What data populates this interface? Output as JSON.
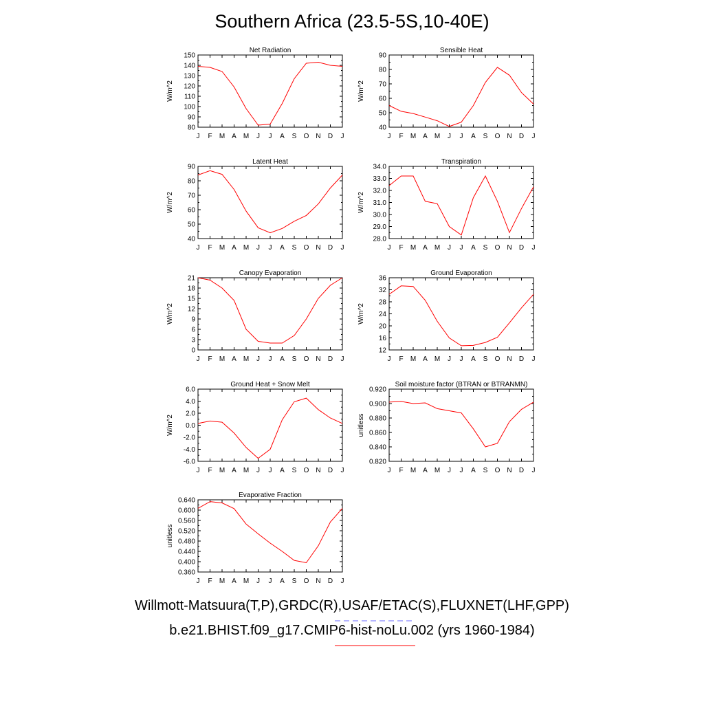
{
  "title": "Southern Africa (23.5-5S,10-40E)",
  "legend": [
    {
      "label": "Willmott-Matsuura(T,P),GRDC(R),USAF/ETAC(S),FLUXNET(LHF,GPP)",
      "color": "#6a6aff",
      "style": "dashed"
    },
    {
      "label": "b.e21.BHIST.f09_g17.CMIP6-hist-noLu.002 (yrs 1960-1984)",
      "color": "#ff0000",
      "style": "solid"
    }
  ],
  "chart_data": [
    {
      "type": "line",
      "title": "Net Radiation",
      "ylabel": "W/m^2",
      "categories": [
        "J",
        "F",
        "M",
        "A",
        "M",
        "J",
        "J",
        "A",
        "S",
        "O",
        "N",
        "D",
        "J"
      ],
      "ylim": [
        80,
        150
      ],
      "yticks": [
        "80",
        "90",
        "100",
        "110",
        "120",
        "130",
        "140",
        "150"
      ],
      "series": [
        {
          "color": "#ff0000",
          "values": [
            139,
            138,
            134,
            119,
            98,
            82,
            83,
            103,
            127,
            142,
            143,
            140,
            139
          ]
        }
      ]
    },
    {
      "type": "line",
      "title": "Sensible Heat",
      "ylabel": "W/m^2",
      "categories": [
        "J",
        "F",
        "M",
        "A",
        "M",
        "J",
        "J",
        "A",
        "S",
        "O",
        "N",
        "D",
        "J"
      ],
      "ylim": [
        40,
        90
      ],
      "yticks": [
        "40",
        "50",
        "60",
        "70",
        "80",
        "90"
      ],
      "series": [
        {
          "color": "#ff0000",
          "values": [
            55,
            51,
            49.5,
            47,
            44.5,
            40.5,
            43.5,
            55,
            71,
            81.5,
            76,
            64,
            56
          ]
        }
      ]
    },
    {
      "type": "line",
      "title": "Latent Heat",
      "ylabel": "W/m^2",
      "categories": [
        "J",
        "F",
        "M",
        "A",
        "M",
        "J",
        "J",
        "A",
        "S",
        "O",
        "N",
        "D",
        "J"
      ],
      "ylim": [
        40,
        90
      ],
      "yticks": [
        "40",
        "50",
        "60",
        "70",
        "80",
        "90"
      ],
      "series": [
        {
          "color": "#ff0000",
          "values": [
            84,
            87,
            84.5,
            74,
            59,
            47.5,
            44,
            47,
            52,
            56,
            64,
            75,
            84
          ]
        }
      ]
    },
    {
      "type": "line",
      "title": "Transpiration",
      "ylabel": "W/m^2",
      "categories": [
        "J",
        "F",
        "M",
        "A",
        "M",
        "J",
        "J",
        "A",
        "S",
        "O",
        "N",
        "D",
        "J"
      ],
      "ylim": [
        28,
        34
      ],
      "yticks": [
        "28.0",
        "29.0",
        "30.0",
        "31.0",
        "32.0",
        "33.0",
        "34.0"
      ],
      "series": [
        {
          "color": "#ff0000",
          "values": [
            32.4,
            33.2,
            33.2,
            31.1,
            30.9,
            29.0,
            28.3,
            31.4,
            33.2,
            31.1,
            28.5,
            30.5,
            32.3
          ]
        }
      ]
    },
    {
      "type": "line",
      "title": "Canopy Evaporation",
      "ylabel": "W/m^2",
      "categories": [
        "J",
        "F",
        "M",
        "A",
        "M",
        "J",
        "J",
        "A",
        "S",
        "O",
        "N",
        "D",
        "J"
      ],
      "ylim": [
        0,
        21
      ],
      "yticks": [
        "0",
        "3",
        "6",
        "9",
        "12",
        "15",
        "18",
        "21"
      ],
      "series": [
        {
          "color": "#ff0000",
          "values": [
            21,
            20.3,
            18,
            14.4,
            6,
            2.5,
            2,
            2,
            4.2,
            9,
            15,
            18.8,
            21
          ]
        }
      ]
    },
    {
      "type": "line",
      "title": "Ground Evaporation",
      "ylabel": "W/m^2",
      "categories": [
        "J",
        "F",
        "M",
        "A",
        "M",
        "J",
        "J",
        "A",
        "S",
        "O",
        "N",
        "D",
        "J"
      ],
      "ylim": [
        12,
        36
      ],
      "yticks": [
        "12",
        "16",
        "20",
        "24",
        "28",
        "32",
        "36"
      ],
      "series": [
        {
          "color": "#ff0000",
          "values": [
            30.5,
            33.3,
            33.1,
            28.5,
            21.5,
            16,
            13.4,
            13.5,
            14.5,
            16.2,
            21,
            26,
            30.5
          ]
        }
      ]
    },
    {
      "type": "line",
      "title": "Ground Heat + Snow Melt",
      "ylabel": "W/m^2",
      "categories": [
        "J",
        "F",
        "M",
        "A",
        "M",
        "J",
        "J",
        "A",
        "S",
        "O",
        "N",
        "D",
        "J"
      ],
      "ylim": [
        -6,
        6
      ],
      "yticks": [
        "-6.0",
        "-4.0",
        "-2.0",
        "0.0",
        "2.0",
        "4.0",
        "6.0"
      ],
      "series": [
        {
          "color": "#ff0000",
          "values": [
            0.3,
            0.7,
            0.5,
            -1.3,
            -3.7,
            -5.5,
            -4.0,
            0.9,
            3.9,
            4.5,
            2.6,
            1.2,
            0.3
          ]
        }
      ]
    },
    {
      "type": "line",
      "title": "Soil moisture factor (BTRAN or BTRANMN)",
      "ylabel": "unitless",
      "categories": [
        "J",
        "F",
        "M",
        "A",
        "M",
        "J",
        "J",
        "A",
        "S",
        "O",
        "N",
        "D",
        "J"
      ],
      "ylim": [
        0.82,
        0.92
      ],
      "yticks": [
        "0.820",
        "0.840",
        "0.860",
        "0.880",
        "0.900",
        "0.920"
      ],
      "series": [
        {
          "color": "#ff0000",
          "values": [
            0.902,
            0.903,
            0.9,
            0.901,
            0.893,
            0.89,
            0.887,
            0.865,
            0.84,
            0.845,
            0.875,
            0.892,
            0.902
          ]
        }
      ]
    },
    {
      "type": "line",
      "title": "Evaporative Fraction",
      "ylabel": "unitless",
      "categories": [
        "J",
        "F",
        "M",
        "A",
        "M",
        "J",
        "J",
        "A",
        "S",
        "O",
        "N",
        "D",
        "J"
      ],
      "ylim": [
        0.36,
        0.64
      ],
      "yticks": [
        "0.360",
        "0.400",
        "0.440",
        "0.480",
        "0.520",
        "0.560",
        "0.600",
        "0.640"
      ],
      "series": [
        {
          "color": "#ff0000",
          "values": [
            0.607,
            0.633,
            0.628,
            0.606,
            0.546,
            0.508,
            0.472,
            0.44,
            0.405,
            0.396,
            0.462,
            0.554,
            0.607
          ]
        }
      ]
    }
  ]
}
